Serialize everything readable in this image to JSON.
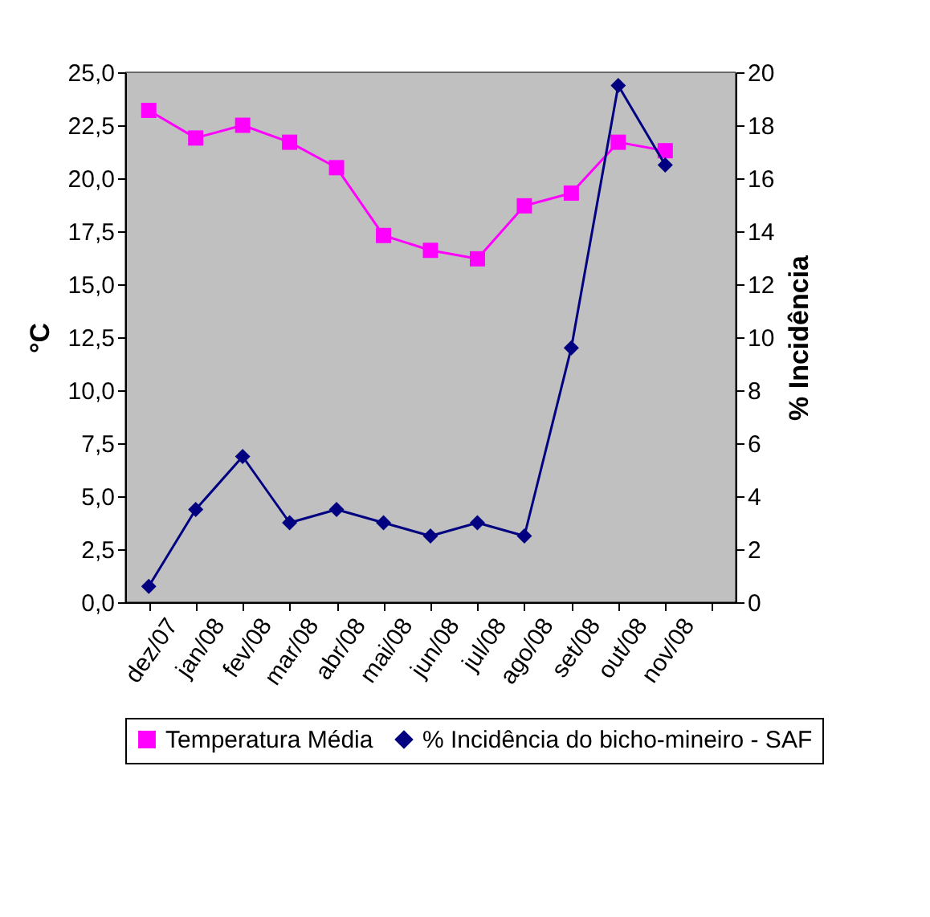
{
  "chart_data": {
    "type": "line",
    "ylabel": "°C",
    "y2label": "% Incidência",
    "categories": [
      "dez/07",
      "jan/08",
      "fev/08",
      "mar/08",
      "abr/08",
      "mai/08",
      "jun/08",
      "jul/08",
      "ago/08",
      "set/08",
      "out/08",
      "nov/08",
      null
    ],
    "series": [
      {
        "name": "Temperatura Média",
        "color": "#ff00ff",
        "marker": "square",
        "values": [
          23.2,
          21.9,
          22.5,
          21.7,
          20.5,
          17.3,
          16.6,
          16.2,
          18.7,
          19.3,
          21.7,
          21.3,
          null
        ]
      },
      {
        "name": "% Incidência do bicho-mineiro - SAF",
        "color": "#000080",
        "marker": "diamond",
        "axis": "y2",
        "values": [
          0.6,
          3.5,
          5.5,
          3.0,
          3.5,
          3.0,
          2.5,
          3.0,
          2.5,
          9.6,
          19.5,
          16.5,
          null
        ]
      }
    ],
    "ylim": [
      0,
      25
    ],
    "yticks": [
      {
        "value": 0,
        "label": "0,0"
      },
      {
        "value": 2.5,
        "label": "2,5"
      },
      {
        "value": 5,
        "label": "5,0"
      },
      {
        "value": 7.5,
        "label": "7,5"
      },
      {
        "value": 10,
        "label": "10,0"
      },
      {
        "value": 12.5,
        "label": "12,5"
      },
      {
        "value": 15,
        "label": "15,0"
      },
      {
        "value": 17.5,
        "label": "17,5"
      },
      {
        "value": 20,
        "label": "20,0"
      },
      {
        "value": 22.5,
        "label": "22,5"
      },
      {
        "value": 25,
        "label": "25,0"
      }
    ],
    "y2lim": [
      0,
      20
    ],
    "y2ticks": [
      0,
      2,
      4,
      6,
      8,
      10,
      12,
      14,
      16,
      18,
      20
    ],
    "grid": false,
    "legend": "bottom"
  }
}
